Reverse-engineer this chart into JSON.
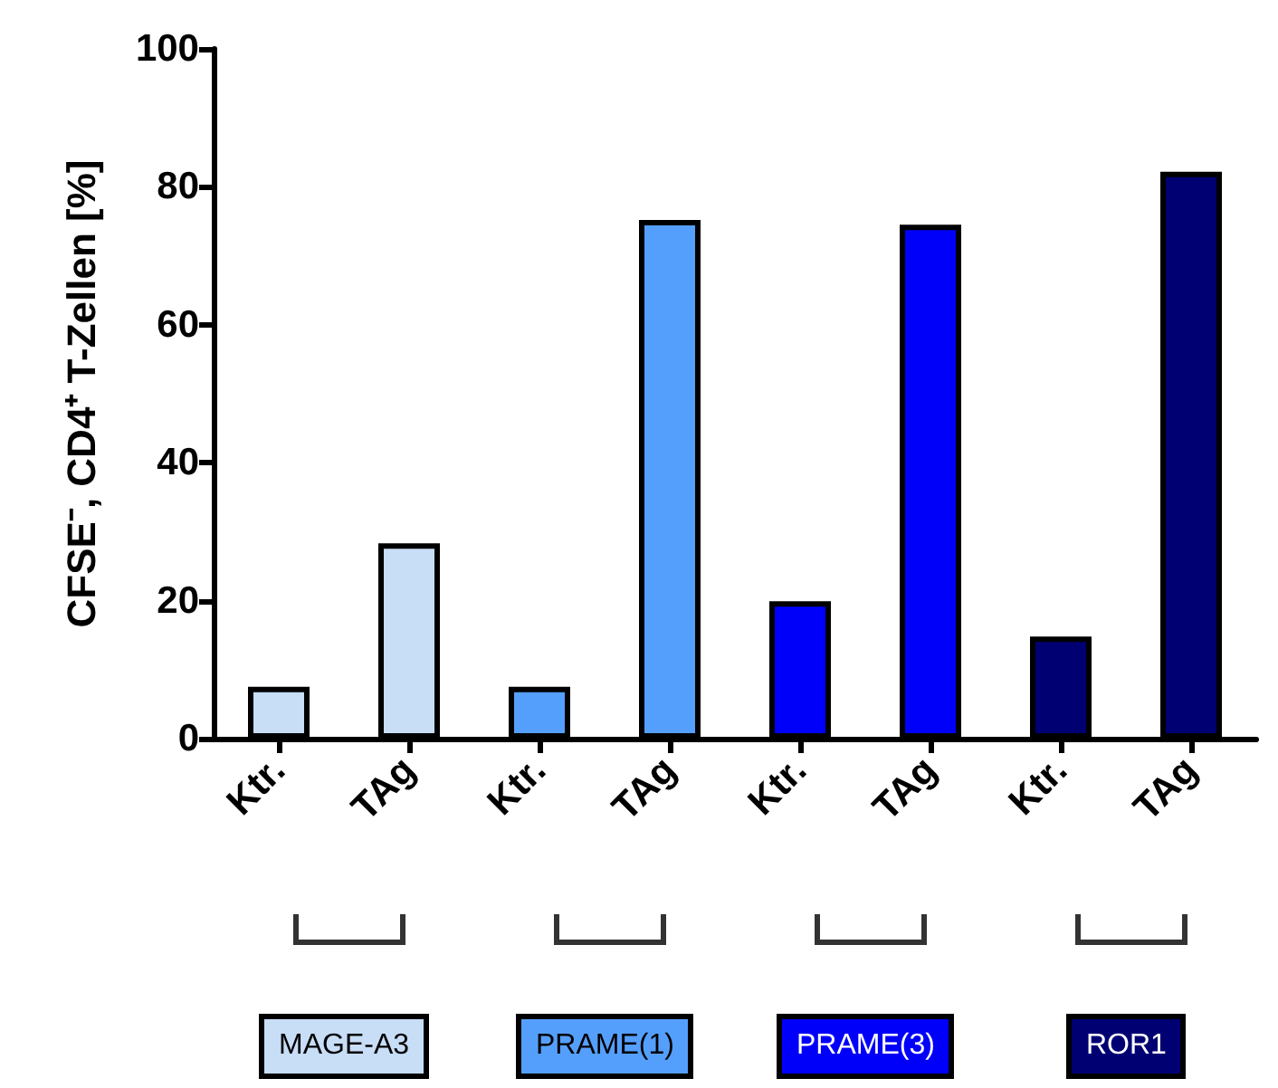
{
  "chart_data": {
    "type": "bar",
    "ylabel": "CFSE⁻, CD4⁺ T-Zellen [%]",
    "categories": [
      "Ktr.",
      "TAg",
      "Ktr.",
      "TAg",
      "Ktr.",
      "TAg",
      "Ktr.",
      "TAg"
    ],
    "series": [
      {
        "name": "MAGE-A3",
        "color": "#c8ddf6",
        "values": [
          7.5,
          28.3,
          null,
          null,
          null,
          null,
          null,
          null
        ]
      },
      {
        "name": "PRAME(1)",
        "color": "#559ffc",
        "values": [
          null,
          null,
          7.5,
          75.2,
          null,
          null,
          null,
          null
        ]
      },
      {
        "name": "PRAME(3)",
        "color": "#0000fa",
        "values": [
          null,
          null,
          null,
          null,
          19.9,
          74.5,
          null,
          null
        ]
      },
      {
        "name": "ROR1",
        "color": "#000072",
        "values": [
          null,
          null,
          null,
          null,
          null,
          null,
          14.8,
          82.2
        ]
      }
    ],
    "ylim": [
      0,
      100
    ],
    "yticks": [
      0,
      20,
      40,
      60,
      80,
      100
    ],
    "grid": false,
    "legend": "bottom"
  }
}
